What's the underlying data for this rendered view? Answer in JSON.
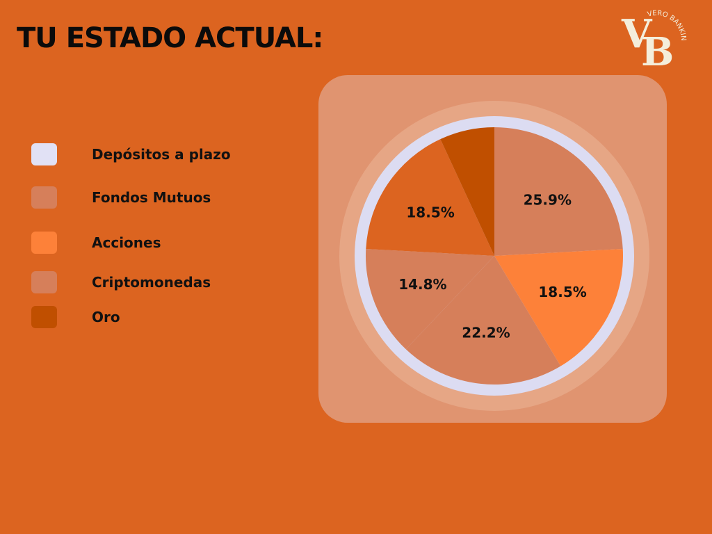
{
  "title": "TU ESTADO ACTUAL:",
  "logo": {
    "monogram": "VB",
    "arc_text": "VERO BANKING"
  },
  "colors": {
    "background": "#dc6420",
    "card": "#e09470",
    "ring_outer": "#e6a685",
    "ring": "#dcdcf2"
  },
  "chart_data": {
    "type": "pie",
    "title": "",
    "slices": [
      {
        "label": "Depósitos a plazo",
        "value": 0,
        "color": "#e1e1f5",
        "display": ""
      },
      {
        "label": "Fondos Mutuos",
        "value": 25.9,
        "color": "#d67f5a",
        "display": "25.9%"
      },
      {
        "label": "Acciones",
        "value": 18.5,
        "color": "#fd8139",
        "display": "18.5%"
      },
      {
        "label": "Criptomonedas",
        "value": 22.2,
        "color": "#d67f5a",
        "display": "22.2%"
      },
      {
        "label": "Criptomonedas",
        "value": 14.8,
        "color": "#d67f5a",
        "display": "14.8%"
      },
      {
        "label": "",
        "value": 18.5,
        "color": "#dc6420",
        "display": "18.5%"
      },
      {
        "label": "Oro",
        "value": 7.4,
        "color": "#c04f00",
        "display": ""
      }
    ],
    "legend": [
      {
        "label": "Depósitos a plazo",
        "color": "#e1e1f5"
      },
      {
        "label": "Fondos Mutuos",
        "color": "#d67f5a"
      },
      {
        "label": "Acciones",
        "color": "#fd8139"
      },
      {
        "label": "Criptomonedas",
        "color": "#d67f5a"
      },
      {
        "label": "Oro",
        "color": "#c04f00"
      }
    ],
    "legend_position": "left"
  }
}
